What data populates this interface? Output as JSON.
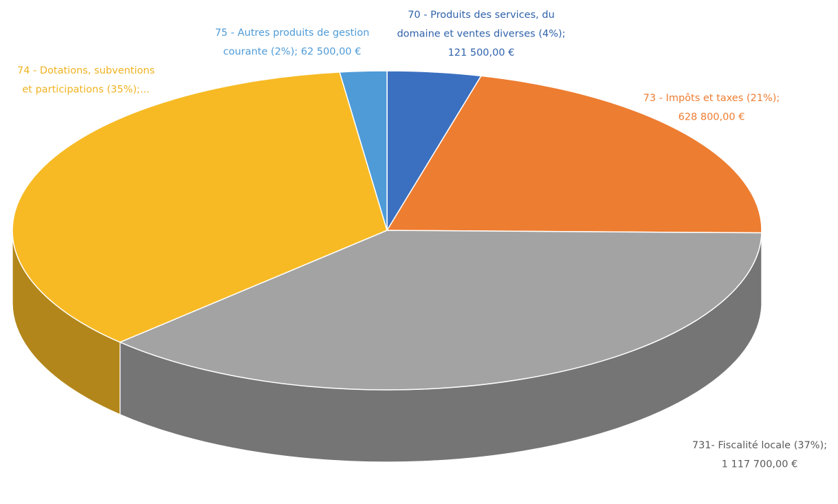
{
  "chart_data": {
    "type": "pie",
    "categories": [
      "70 - Produits des services, du domaine et ventes diverses",
      "73 - Impôts et taxes",
      "731- Fiscalité locale",
      "74 - Dotations, subventions et participations",
      "75 - Autres produits de gestion courante"
    ],
    "values": [
      4,
      21,
      37,
      35,
      2
    ],
    "value_labels": [
      [
        "70 - Produits des services, du",
        "domaine et ventes diverses (4%);",
        "121 500,00 €"
      ],
      [
        "73 - Impôts et taxes (21%);",
        "628 800,00 €"
      ],
      [
        "731- Fiscalité locale (37%);",
        "1 117 700,00 €"
      ],
      [
        "74 - Dotations, subventions",
        "et participations (35%);..."
      ],
      [
        "75 - Autres produits de gestion",
        "courante (2%); 62 500,00 €"
      ]
    ],
    "colors": [
      "#3b70c0",
      "#ed7d31",
      "#a3a3a3",
      "#f7ba24",
      "#4e9bd8"
    ]
  }
}
